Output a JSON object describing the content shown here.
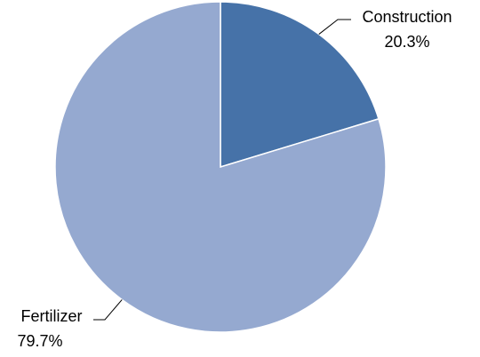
{
  "chart_data": {
    "type": "pie",
    "categories": [
      "Construction",
      "Fertilizer"
    ],
    "values": [
      20.3,
      79.7
    ],
    "value_labels": [
      "20.3%",
      "79.7%"
    ],
    "colors": [
      "#4672a8",
      "#95a9d0"
    ]
  }
}
